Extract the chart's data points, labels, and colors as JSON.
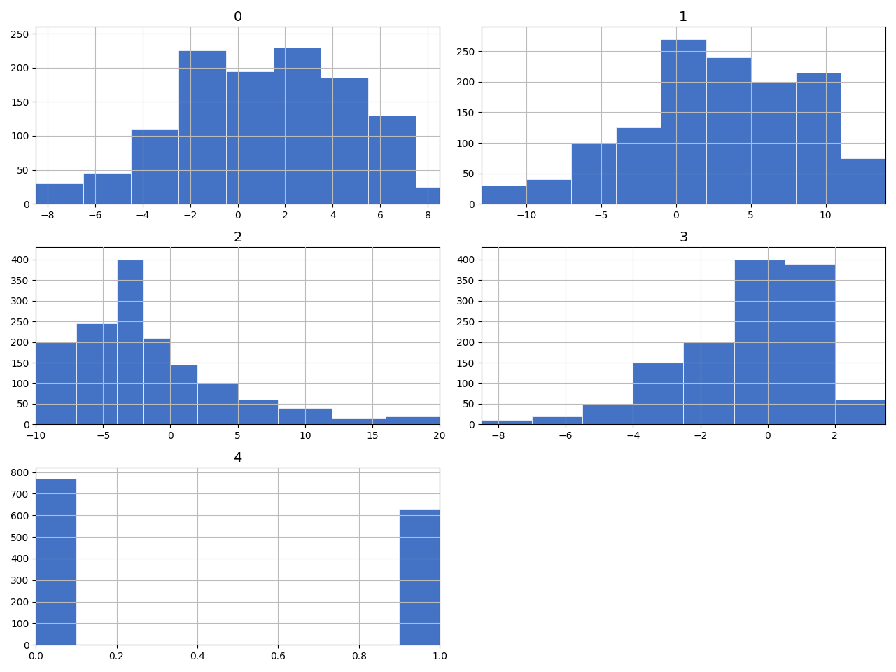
{
  "plots": [
    {
      "title": "0",
      "row": 0,
      "col": 0,
      "bin_edges": [
        -8.5,
        -6.5,
        -4.5,
        -2.5,
        -0.5,
        1.5,
        3.5,
        5.5,
        7.5,
        8.5
      ],
      "counts": [
        30,
        45,
        110,
        225,
        195,
        230,
        185,
        130,
        25
      ]
    },
    {
      "title": "1",
      "row": 0,
      "col": 1,
      "bin_edges": [
        -13,
        -10,
        -7,
        -4,
        -1,
        2,
        5,
        8,
        11,
        14
      ],
      "counts": [
        30,
        40,
        100,
        125,
        270,
        240,
        200,
        215,
        75
      ]
    },
    {
      "title": "2",
      "row": 1,
      "col": 0,
      "bin_edges": [
        -10,
        -7,
        -4,
        -2,
        0,
        2,
        5,
        8,
        12,
        16,
        20
      ],
      "counts": [
        200,
        245,
        400,
        210,
        145,
        100,
        60,
        40,
        15,
        20
      ]
    },
    {
      "title": "3",
      "row": 1,
      "col": 1,
      "bin_edges": [
        -8.5,
        -7.0,
        -5.5,
        -4.0,
        -2.5,
        -1.0,
        0.5,
        2.0,
        3.5
      ],
      "counts": [
        10,
        20,
        50,
        150,
        200,
        400,
        390,
        60
      ]
    },
    {
      "title": "4",
      "row": 2,
      "col": 0,
      "bin_edges": [
        0.0,
        0.1,
        0.2,
        0.3,
        0.4,
        0.5,
        0.6,
        0.7,
        0.8,
        0.9,
        1.0
      ],
      "counts": [
        770,
        0,
        0,
        0,
        0,
        0,
        0,
        0,
        0,
        630
      ]
    }
  ],
  "bar_color": "#4472C4",
  "grid_color": "#bbbbbb",
  "figsize": [
    12.8,
    9.6
  ],
  "dpi": 100
}
